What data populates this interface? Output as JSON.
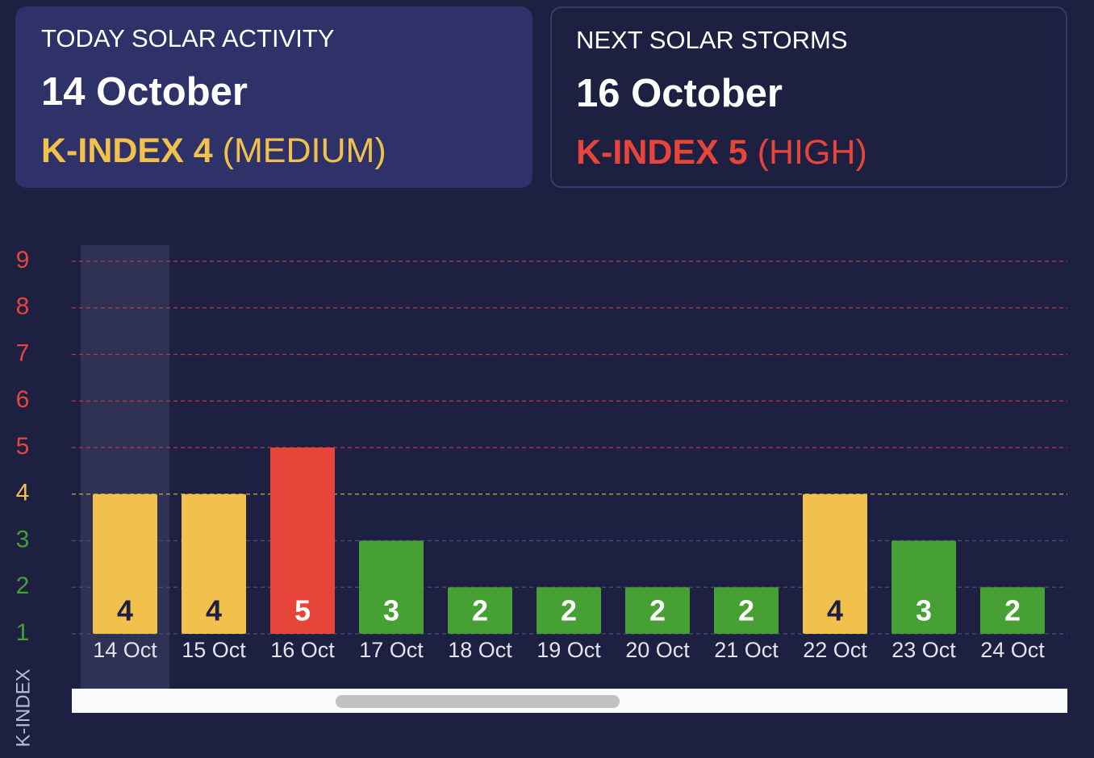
{
  "cards": [
    {
      "title": "TODAY SOLAR ACTIVITY",
      "date": "14 October",
      "index_label": "K-INDEX",
      "index_value": 4,
      "level": "(MEDIUM)",
      "color": "#f2c04c"
    },
    {
      "title": "NEXT SOLAR STORMS",
      "date": "16 October",
      "index_label": "K-INDEX",
      "index_value": 5,
      "level": "(HIGH)",
      "color": "#e8453a"
    }
  ],
  "chart_data": {
    "type": "bar",
    "y_label": "K-INDEX",
    "categories": [
      "14 Oct",
      "15 Oct",
      "16 Oct",
      "17 Oct",
      "18 Oct",
      "19 Oct",
      "20 Oct",
      "21 Oct",
      "22 Oct",
      "23 Oct",
      "24 Oct"
    ],
    "values": [
      4,
      4,
      5,
      3,
      2,
      2,
      2,
      2,
      4,
      3,
      2
    ],
    "colors": [
      "#f2c04c",
      "#f2c04c",
      "#e8453a",
      "#46a033",
      "#46a033",
      "#46a033",
      "#46a033",
      "#46a033",
      "#f2c04c",
      "#46a033",
      "#46a033"
    ],
    "value_label_colors": [
      "#1d2041",
      "#1d2041",
      "#ffffff",
      "#ffffff",
      "#ffffff",
      "#ffffff",
      "#ffffff",
      "#ffffff",
      "#1d2041",
      "#ffffff",
      "#ffffff"
    ],
    "ylim": [
      1,
      9
    ],
    "yticks": [
      1,
      2,
      3,
      4,
      5,
      6,
      7,
      8,
      9
    ],
    "ytick_colors": [
      "#46a033",
      "#46a033",
      "#46a033",
      "#f2c04c",
      "#e8453a",
      "#e8453a",
      "#e8453a",
      "#e8453a",
      "#e8453a"
    ],
    "grid_colors": [
      "#4a4d7a",
      "#4a4d7a",
      "#4a4d7a",
      "#c9a94a",
      "#b8394a",
      "#b8394a",
      "#b8394a",
      "#b8394a",
      "#b8394a"
    ],
    "grid": true,
    "highlight_index": 0
  }
}
